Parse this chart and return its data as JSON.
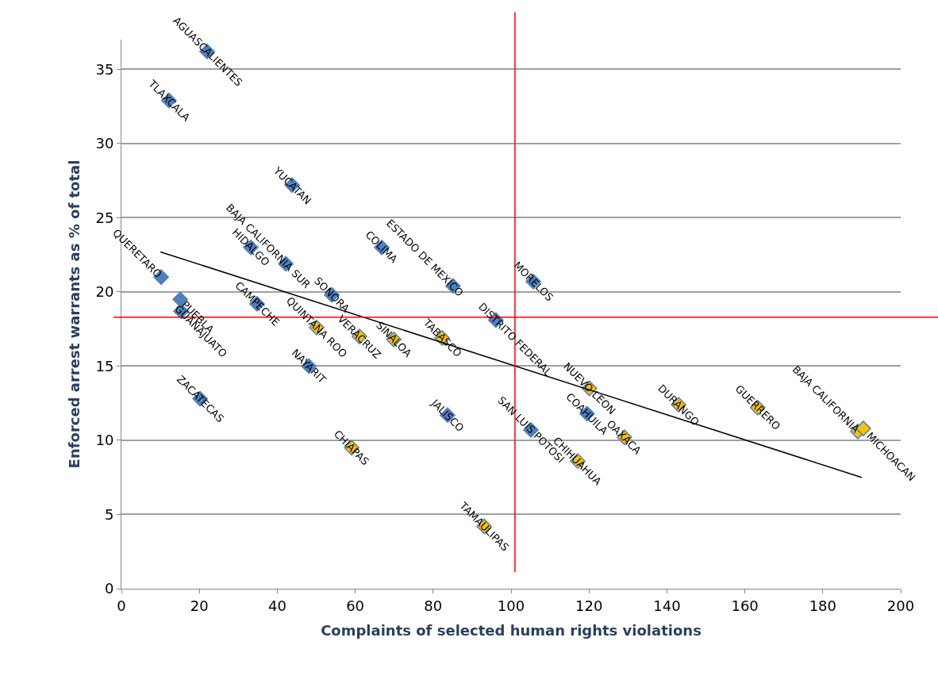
{
  "chart_data": {
    "type": "scatter",
    "xlabel": "Complaints of selected human rights violations",
    "ylabel": "Enforced arrest warrants as % of total",
    "xlim": [
      0,
      200
    ],
    "xticks": [
      0,
      20,
      40,
      60,
      80,
      100,
      120,
      140,
      160,
      180,
      200
    ],
    "ylim": [
      0,
      37
    ],
    "yticks": [
      0,
      5,
      10,
      15,
      20,
      25,
      30,
      35
    ],
    "grid": "y",
    "marker": "diamond",
    "series": [
      {
        "color": "#4f81bd",
        "x": [
          22,
          12.2,
          43.8,
          33.2,
          42.2,
          66.8,
          10.2,
          15.1,
          15.3,
          54,
          34.8,
          85.1,
          105.7,
          96.1,
          48.1,
          20.2,
          83.7,
          105.1,
          119.5
        ],
        "values": [
          36.2,
          32.9,
          27.2,
          23,
          21.9,
          23,
          21,
          19.5,
          18.7,
          19.8,
          19.2,
          20.4,
          20.7,
          18.1,
          15,
          12.8,
          11.7,
          10.7,
          11.8
        ]
      },
      {
        "color": "#ffc000",
        "x": [
          50.1,
          61.1,
          69.9,
          82.3,
          59.1,
          120.1,
          129.1,
          117.1,
          143,
          163.3,
          189,
          190.4,
          93.1
        ],
        "values": [
          17.6,
          17,
          16.8,
          16.9,
          9.5,
          13.5,
          10.2,
          8.6,
          12.4,
          12.2,
          10.6,
          10.8,
          4.2
        ]
      },
      {
        "type": "line",
        "color": "#000000",
        "marker": "none",
        "x": [
          10,
          190
        ],
        "values": [
          22.7,
          7.5
        ]
      }
    ],
    "ref_lines": [
      {
        "axis": "x",
        "value": 101,
        "color": "#ff0000"
      },
      {
        "axis": "y",
        "value": 18.3,
        "color": "#ff0000"
      }
    ],
    "annotations": [
      {
        "text": "AGUASCALIENTES",
        "x": 22,
        "y": 36.2
      },
      {
        "text": "TLAXCALA",
        "x": 12.2,
        "y": 32.9
      },
      {
        "text": "YUCATAN",
        "x": 43.8,
        "y": 27.2
      },
      {
        "text": "HIDALGO",
        "x": 33.2,
        "y": 23
      },
      {
        "text": "BAJA CALIFORNIA SUR",
        "x": 42.2,
        "y": 21.9
      },
      {
        "text": "COLIMA",
        "x": 66.8,
        "y": 23
      },
      {
        "text": "QUERETARO",
        "x": 10.2,
        "y": 21
      },
      {
        "text": "PUEBLA",
        "x": 15.1,
        "y": 19.5
      },
      {
        "text": "GUANAJUATO",
        "x": 15.3,
        "y": 18.7
      },
      {
        "text": "SONORA",
        "x": 54,
        "y": 19.8
      },
      {
        "text": "CAMPECHE",
        "x": 34.8,
        "y": 19.2
      },
      {
        "text": "ESTADO DE MEXICO",
        "x": 85.1,
        "y": 20.4
      },
      {
        "text": "MORELOS",
        "x": 105.7,
        "y": 20.7
      },
      {
        "text": "DISTRITO FEDERAL",
        "x": 96.1,
        "y": 18.1
      },
      {
        "text": "NAYARIT",
        "x": 48.1,
        "y": 15
      },
      {
        "text": "ZACATECAS",
        "x": 20.2,
        "y": 12.8
      },
      {
        "text": "JALISCO",
        "x": 83.7,
        "y": 11.7
      },
      {
        "text": "SAN LUIS POTOSI",
        "x": 105.1,
        "y": 10.7
      },
      {
        "text": "COAHUILA",
        "x": 119.5,
        "y": 11.8
      },
      {
        "text": "QUINTANA ROO",
        "x": 50.1,
        "y": 17.6
      },
      {
        "text": "VERACRUZ",
        "x": 61.1,
        "y": 17
      },
      {
        "text": "SINALOA",
        "x": 69.9,
        "y": 16.8
      },
      {
        "text": "TABASCO",
        "x": 82.3,
        "y": 16.9
      },
      {
        "text": "CHIAPAS",
        "x": 59.1,
        "y": 9.5
      },
      {
        "text": "NUEVO LEON",
        "x": 120.1,
        "y": 13.5
      },
      {
        "text": "OAXACA",
        "x": 129.1,
        "y": 10.2
      },
      {
        "text": "CHIHUAHUA",
        "x": 117.1,
        "y": 8.6
      },
      {
        "text": "DURANGO",
        "x": 143,
        "y": 12.4
      },
      {
        "text": "GUERRERO",
        "x": 163.3,
        "y": 12.2
      },
      {
        "text": "BAJA CALIFORNIA",
        "x": 189,
        "y": 10.6
      },
      {
        "text": "MICHOACAN",
        "x": 190.4,
        "y": 10.8
      },
      {
        "text": "TAMAULIPAS",
        "x": 93.1,
        "y": 4.2
      }
    ]
  }
}
